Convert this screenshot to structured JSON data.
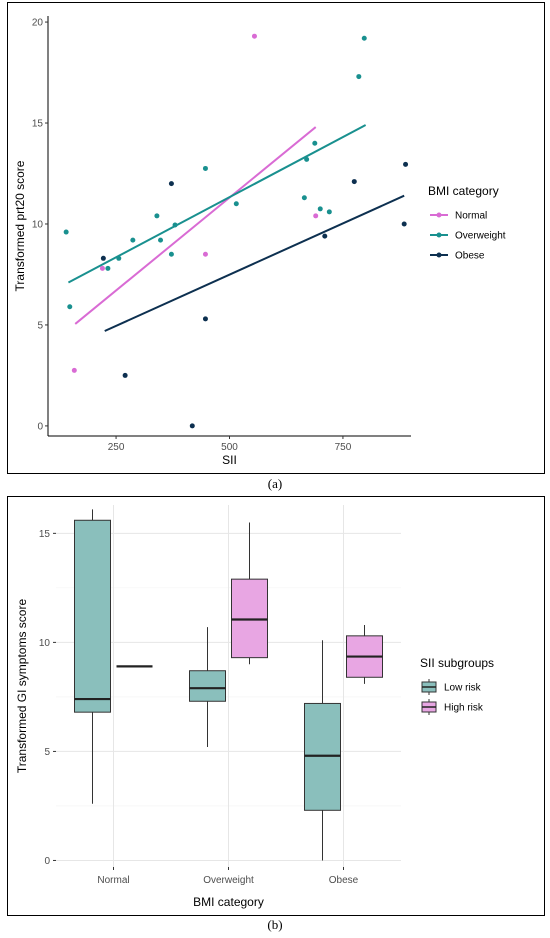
{
  "colors": {
    "normal": "#d96bd4",
    "overweight": "#19908f",
    "obese": "#0d3050",
    "low_risk_fill": "#8abfbc",
    "high_risk_fill": "#e8a6e3",
    "grid": "#e6e6e6"
  },
  "captions": {
    "a": "(a)",
    "b": "(b)"
  },
  "chart_data": [
    {
      "type": "scatter",
      "xlabel": "SII",
      "ylabel": "Transformed prt20 score",
      "xlim": [
        100,
        900
      ],
      "ylim": [
        -0.5,
        20.3
      ],
      "x_ticks": [
        250,
        500,
        750
      ],
      "y_ticks": [
        0,
        5,
        10,
        15,
        20
      ],
      "grid": false,
      "legend": {
        "title": "BMI category",
        "position": "right",
        "entries": [
          "Normal",
          "Overweight",
          "Obese"
        ]
      },
      "series": [
        {
          "name": "Normal",
          "color_key": "normal",
          "points": [
            [
              158,
              2.75
            ],
            [
              220,
              7.8
            ],
            [
              447,
              8.5
            ],
            [
              555,
              19.3
            ],
            [
              690,
              10.4
            ]
          ],
          "fit": [
            [
              160,
              5.05
            ],
            [
              690,
              14.8
            ]
          ]
        },
        {
          "name": "Overweight",
          "color_key": "overweight",
          "points": [
            [
              140,
              9.6
            ],
            [
              148,
              5.9
            ],
            [
              232,
              7.8
            ],
            [
              256,
              8.3
            ],
            [
              287,
              9.2
            ],
            [
              340,
              10.4
            ],
            [
              348,
              9.2
            ],
            [
              372,
              8.5
            ],
            [
              380,
              9.95
            ],
            [
              447,
              12.75
            ],
            [
              515,
              11.0
            ],
            [
              665,
              11.3
            ],
            [
              670,
              13.2
            ],
            [
              688,
              14.0
            ],
            [
              700,
              10.75
            ],
            [
              720,
              10.6
            ],
            [
              785,
              17.3
            ],
            [
              797,
              19.2
            ]
          ],
          "fit": [
            [
              145,
              7.1
            ],
            [
              800,
              14.9
            ]
          ]
        },
        {
          "name": "Obese",
          "color_key": "obese",
          "points": [
            [
              222,
              8.3
            ],
            [
              270,
              2.5
            ],
            [
              372,
              12.0
            ],
            [
              418,
              0.0
            ],
            [
              447,
              5.3
            ],
            [
              710,
              9.4
            ],
            [
              775,
              12.1
            ],
            [
              885,
              10.0
            ],
            [
              888,
              12.95
            ]
          ],
          "fit": [
            [
              225,
              4.7
            ],
            [
              885,
              11.4
            ]
          ]
        }
      ]
    },
    {
      "type": "box",
      "xlabel": "BMI category",
      "ylabel": "Transformed GI symptoms score",
      "categories": [
        "Normal",
        "Overweight",
        "Obese"
      ],
      "ylim": [
        -0.3,
        16.3
      ],
      "y_ticks": [
        0,
        5,
        10,
        15
      ],
      "grid": true,
      "legend": {
        "title": "SII subgroups",
        "position": "right",
        "entries": [
          "Low risk",
          "High risk"
        ]
      },
      "series": [
        {
          "name": "Low risk",
          "fill_key": "low_risk_fill",
          "boxes": [
            {
              "category": "Normal",
              "min": 2.6,
              "q1": 6.8,
              "median": 7.4,
              "q3": 15.6,
              "max": 16.1
            },
            {
              "category": "Overweight",
              "min": 5.2,
              "q1": 7.3,
              "median": 7.9,
              "q3": 8.7,
              "max": 10.7
            },
            {
              "category": "Obese",
              "min": 0.0,
              "q1": 2.3,
              "median": 4.8,
              "q3": 7.2,
              "max": 10.1
            }
          ]
        },
        {
          "name": "High risk",
          "fill_key": "high_risk_fill",
          "boxes": [
            {
              "category": "Normal",
              "min": 8.9,
              "q1": 8.9,
              "median": 8.9,
              "q3": 8.9,
              "max": 8.9
            },
            {
              "category": "Overweight",
              "min": 9.0,
              "q1": 9.3,
              "median": 11.05,
              "q3": 12.9,
              "max": 15.5
            },
            {
              "category": "Obese",
              "min": 8.1,
              "q1": 8.4,
              "median": 9.35,
              "q3": 10.3,
              "max": 10.8
            }
          ]
        }
      ]
    }
  ]
}
